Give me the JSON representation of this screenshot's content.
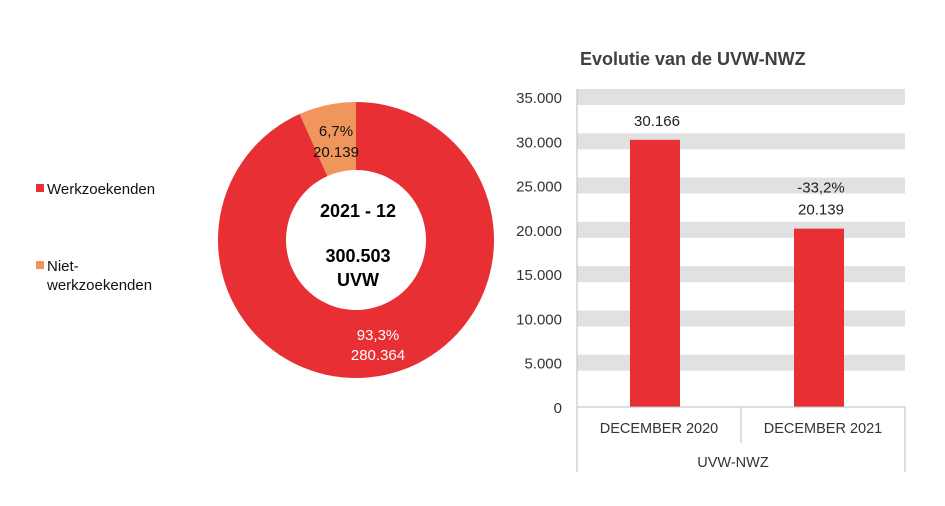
{
  "chart_data": [
    {
      "type": "pie",
      "center_label": {
        "line1": "2021 - 12",
        "line2": "300.503",
        "line3": "UVW"
      },
      "slices": [
        {
          "name": "Werkzoekenden",
          "value": 280364,
          "value_label": "280.364",
          "percent_label": "93,3%",
          "color": "#e83034"
        },
        {
          "name": "Niet-werkzoekenden",
          "legend_lines": [
            "Niet-",
            "werkzoekenden"
          ],
          "value": 20139,
          "value_label": "20.139",
          "percent_label": "6,7%",
          "color": "#f0965c"
        }
      ],
      "legend_position": "left"
    },
    {
      "type": "bar",
      "title": "Evolutie van de UVW-NWZ",
      "categories": [
        "DECEMBER 2020",
        "DECEMBER 2021"
      ],
      "group_label": "UVW-NWZ",
      "values": [
        30166,
        20139
      ],
      "value_labels": [
        "30.166",
        "20.139"
      ],
      "change_labels": [
        "",
        "-33,2%"
      ],
      "ylim": [
        0,
        35000
      ],
      "yticks": [
        0,
        5000,
        10000,
        15000,
        20000,
        25000,
        30000,
        35000
      ],
      "ytick_labels": [
        "0",
        "5.000",
        "10.000",
        "15.000",
        "20.000",
        "25.000",
        "30.000",
        "35.000"
      ],
      "bar_color": "#e83034",
      "grid": true,
      "grid_color": "#e1e1e1"
    }
  ]
}
